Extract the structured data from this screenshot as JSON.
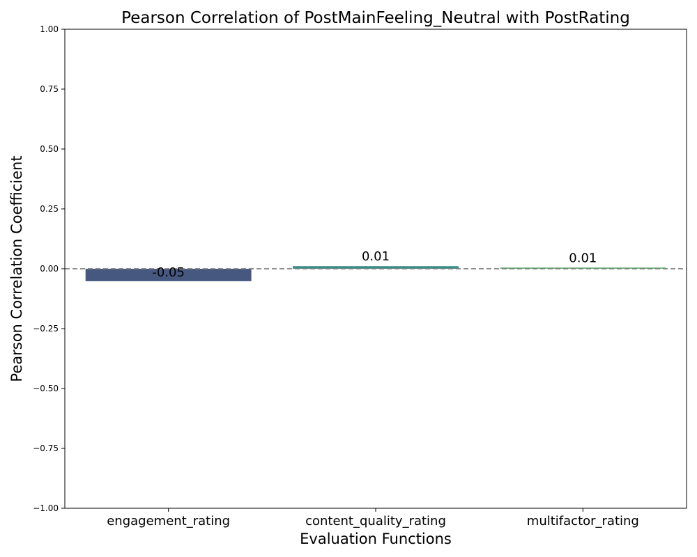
{
  "chart_data": {
    "type": "bar",
    "title": "Pearson Correlation of PostMainFeeling_Neutral with PostRating",
    "xlabel": "Evaluation Functions",
    "ylabel": "Pearson Correlation Coefficient",
    "categories": [
      "engagement_rating",
      "content_quality_rating",
      "multifactor_rating"
    ],
    "values": [
      -0.052,
      0.011,
      0.005
    ],
    "data_labels": [
      "-0.05",
      "0.01",
      "0.01"
    ],
    "bar_colors": [
      "#46587f",
      "#3b8d8a",
      "#5db36a"
    ],
    "ylim": [
      -1.0,
      1.0
    ],
    "yticks": [
      1.0,
      0.75,
      0.5,
      0.25,
      0.0,
      -0.25,
      -0.5,
      -0.75,
      -1.0
    ],
    "ytick_labels": [
      "1.00",
      "0.75",
      "0.50",
      "0.25",
      "0.00",
      "−0.25",
      "−0.50",
      "−0.75",
      "−1.00"
    ],
    "reference_line": {
      "y": 0,
      "style": "dashed",
      "color": "#808080"
    },
    "grid": false,
    "legend": "none"
  }
}
